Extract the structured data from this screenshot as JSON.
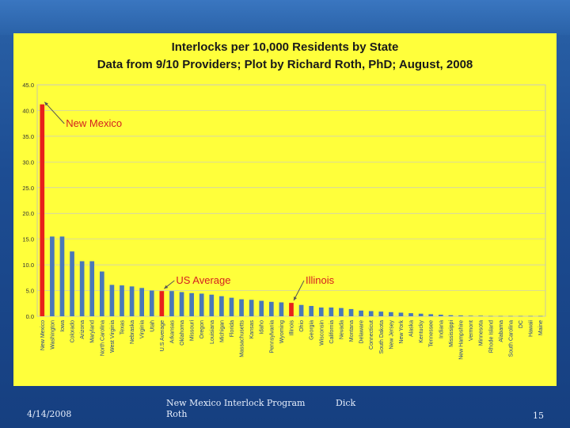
{
  "chart_data": {
    "type": "bar",
    "title": "Interlocks per 10,000 Residents by State",
    "subtitle": "Data from 9/10 Providers; Plot by Richard Roth, PhD; August, 2008",
    "ylim": [
      0,
      45
    ],
    "yticks": [
      "0.0",
      "5.0",
      "10.0",
      "15.0",
      "20.0",
      "25.0",
      "30.0",
      "35.0",
      "40.0",
      "45.0"
    ],
    "grid": true,
    "categories": [
      "New Mexico",
      "Washington",
      "Iowa",
      "Colorado",
      "Arizona",
      "Maryland",
      "North Carolina",
      "West Virginia",
      "Texas",
      "Nebraska",
      "Virginia",
      "Utah",
      "U.S Average",
      "Arkansas",
      "Oklahoma",
      "Missouri",
      "Oregon",
      "Louisiana",
      "Michigan",
      "Florida",
      "Massachusetts",
      "Kansas",
      "Idaho",
      "Pennsylvania",
      "Wyoming",
      "Illinois",
      "Ohio",
      "Georgia",
      "Wisconsin",
      "California",
      "Nevada",
      "Montana",
      "Delaware",
      "Connecticut",
      "South Dakota",
      "New Jersey",
      "New York",
      "Alaska",
      "Kentucky",
      "Tennessee",
      "Indiana",
      "Mississippi",
      "New Hampshire",
      "Vermont",
      "Minnesota",
      "Rhode Island",
      "Alabama",
      "South Carolina",
      "DC",
      "Hawaii",
      "Maine"
    ],
    "values": [
      41.2,
      15.5,
      15.5,
      12.6,
      10.7,
      10.7,
      8.7,
      6.1,
      6.0,
      5.8,
      5.5,
      5.0,
      4.9,
      4.9,
      4.7,
      4.5,
      4.4,
      4.2,
      3.9,
      3.6,
      3.3,
      3.2,
      3.0,
      2.8,
      2.7,
      2.6,
      2.2,
      2.0,
      1.7,
      1.7,
      1.6,
      1.4,
      1.1,
      1.0,
      0.9,
      0.8,
      0.7,
      0.6,
      0.5,
      0.4,
      0.3,
      0.2,
      0.15,
      0.1,
      0.1,
      0.05,
      0.05,
      0.05,
      0.05,
      0.05,
      0.05
    ],
    "highlight_categories": [
      "New Mexico",
      "U.S Average",
      "Illinois"
    ],
    "annotations": [
      {
        "label": "New Mexico",
        "target": "New Mexico"
      },
      {
        "label": "US Average",
        "target": "U.S Average"
      },
      {
        "label": "Illinois",
        "target": "Illinois"
      }
    ]
  },
  "colors": {
    "bar": "#4a78b8",
    "highlight": "#e8201b",
    "annotation": "#d42020",
    "panel": "#ffff3b"
  },
  "footer": {
    "date": "4/14/2008",
    "presentation": "New Mexico Interlock Program",
    "author_first": "Dick",
    "author_last": "Roth",
    "page": "15"
  }
}
